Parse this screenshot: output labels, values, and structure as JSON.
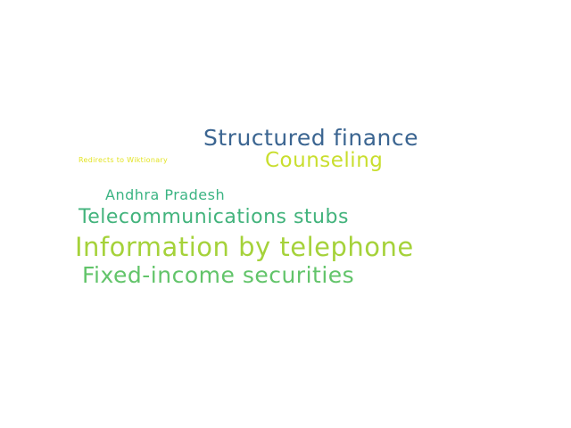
{
  "words": [
    {
      "text": "Structured finance",
      "color": "#3b6591"
    },
    {
      "text": "Counseling",
      "color": "#c9de2e"
    },
    {
      "text": "Redirects to Wiktionary",
      "color": "#e3e424"
    },
    {
      "text": "Andhra Pradesh",
      "color": "#3bb483"
    },
    {
      "text": "Telecommunications stubs",
      "color": "#42b37c"
    },
    {
      "text": "Information by telephone",
      "color": "#a5d23a"
    },
    {
      "text": "Fixed-income securities",
      "color": "#62c46a"
    }
  ]
}
